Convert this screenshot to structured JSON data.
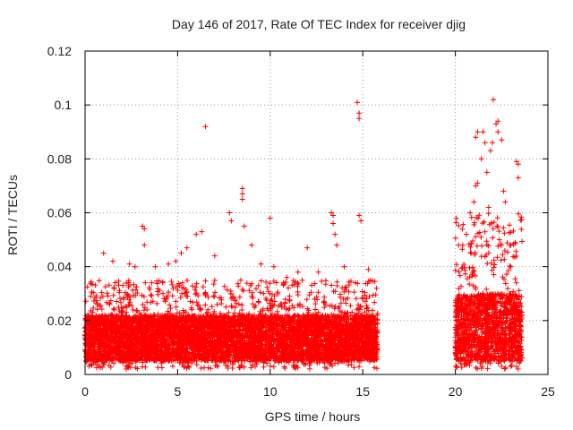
{
  "chart_data": {
    "type": "scatter",
    "title": "Day 146 of 2017, Rate Of TEC Index for receiver djig",
    "xlabel": "GPS time / hours",
    "ylabel": "ROTI / TECUs",
    "xlim": [
      0,
      25
    ],
    "ylim": [
      0,
      0.12
    ],
    "x_ticks": [
      0,
      5,
      10,
      15,
      20,
      25
    ],
    "x_tick_labels": [
      "0",
      "5",
      "10",
      "15",
      "20",
      "25"
    ],
    "y_ticks": [
      0,
      0.02,
      0.04,
      0.06,
      0.08,
      0.1,
      0.12
    ],
    "y_tick_labels": [
      "0",
      "0.02",
      "0.04",
      "0.06",
      "0.08",
      "0.1",
      "0.12"
    ],
    "grid": true,
    "marker": "+",
    "colors": {
      "series": "#ff0000",
      "axis": "#000000",
      "grid": "#999999",
      "text": "#222222"
    },
    "series": [
      {
        "name": "ROTI",
        "segments": [
          {
            "start_hour": 0.0,
            "end_hour": 15.8,
            "typical_min": 0.005,
            "typical_max": 0.022,
            "upper_envelope": 0.035
          },
          {
            "start_hour": 20.0,
            "end_hour": 23.6,
            "typical_min": 0.005,
            "typical_max": 0.03,
            "upper_envelope": 0.06
          }
        ],
        "notable_points": [
          {
            "x": 0.3,
            "y": 0.029
          },
          {
            "x": 1.0,
            "y": 0.045
          },
          {
            "x": 1.5,
            "y": 0.042
          },
          {
            "x": 2.4,
            "y": 0.041
          },
          {
            "x": 2.7,
            "y": 0.04
          },
          {
            "x": 3.1,
            "y": 0.055
          },
          {
            "x": 3.2,
            "y": 0.054
          },
          {
            "x": 3.2,
            "y": 0.048
          },
          {
            "x": 3.8,
            "y": 0.04
          },
          {
            "x": 4.5,
            "y": 0.041
          },
          {
            "x": 4.9,
            "y": 0.042
          },
          {
            "x": 5.2,
            "y": 0.045
          },
          {
            "x": 5.5,
            "y": 0.047
          },
          {
            "x": 6.0,
            "y": 0.052
          },
          {
            "x": 6.3,
            "y": 0.053
          },
          {
            "x": 6.5,
            "y": 0.092
          },
          {
            "x": 7.0,
            "y": 0.044
          },
          {
            "x": 7.8,
            "y": 0.06
          },
          {
            "x": 7.9,
            "y": 0.057
          },
          {
            "x": 8.5,
            "y": 0.069
          },
          {
            "x": 8.5,
            "y": 0.067
          },
          {
            "x": 8.5,
            "y": 0.065
          },
          {
            "x": 8.6,
            "y": 0.055
          },
          {
            "x": 9.0,
            "y": 0.048
          },
          {
            "x": 9.5,
            "y": 0.041
          },
          {
            "x": 10.0,
            "y": 0.058
          },
          {
            "x": 10.2,
            "y": 0.04
          },
          {
            "x": 10.9,
            "y": 0.036
          },
          {
            "x": 11.5,
            "y": 0.038
          },
          {
            "x": 12.0,
            "y": 0.047
          },
          {
            "x": 12.6,
            "y": 0.038
          },
          {
            "x": 13.3,
            "y": 0.06
          },
          {
            "x": 13.4,
            "y": 0.059
          },
          {
            "x": 13.4,
            "y": 0.056
          },
          {
            "x": 13.5,
            "y": 0.052
          },
          {
            "x": 13.6,
            "y": 0.048
          },
          {
            "x": 14.0,
            "y": 0.04
          },
          {
            "x": 14.7,
            "y": 0.101
          },
          {
            "x": 14.8,
            "y": 0.097
          },
          {
            "x": 14.8,
            "y": 0.095
          },
          {
            "x": 14.8,
            "y": 0.059
          },
          {
            "x": 14.9,
            "y": 0.057
          },
          {
            "x": 15.3,
            "y": 0.039
          },
          {
            "x": 20.4,
            "y": 0.048
          },
          {
            "x": 20.6,
            "y": 0.052
          },
          {
            "x": 20.8,
            "y": 0.06
          },
          {
            "x": 21.0,
            "y": 0.064
          },
          {
            "x": 21.1,
            "y": 0.07
          },
          {
            "x": 21.2,
            "y": 0.071
          },
          {
            "x": 21.1,
            "y": 0.088
          },
          {
            "x": 21.2,
            "y": 0.09
          },
          {
            "x": 21.4,
            "y": 0.08
          },
          {
            "x": 21.5,
            "y": 0.09
          },
          {
            "x": 21.6,
            "y": 0.086
          },
          {
            "x": 21.7,
            "y": 0.075
          },
          {
            "x": 21.8,
            "y": 0.062
          },
          {
            "x": 21.9,
            "y": 0.083
          },
          {
            "x": 22.0,
            "y": 0.086
          },
          {
            "x": 22.05,
            "y": 0.102
          },
          {
            "x": 22.2,
            "y": 0.093
          },
          {
            "x": 22.3,
            "y": 0.094
          },
          {
            "x": 22.3,
            "y": 0.09
          },
          {
            "x": 22.5,
            "y": 0.087
          },
          {
            "x": 22.6,
            "y": 0.068
          },
          {
            "x": 22.7,
            "y": 0.064
          },
          {
            "x": 23.0,
            "y": 0.04
          },
          {
            "x": 23.3,
            "y": 0.079
          },
          {
            "x": 23.4,
            "y": 0.078
          },
          {
            "x": 23.4,
            "y": 0.073
          }
        ]
      }
    ]
  }
}
